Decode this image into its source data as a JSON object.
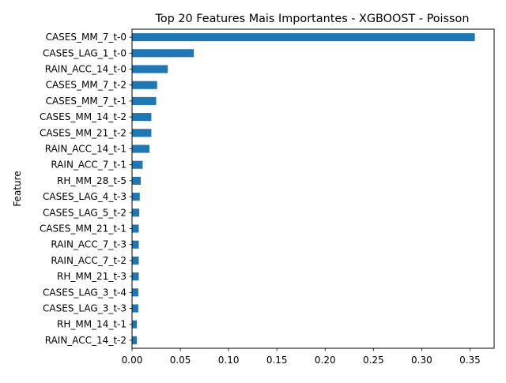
{
  "chart_data": {
    "type": "bar",
    "orientation": "horizontal",
    "title": "Top 20 Features Mais Importantes - XGBOOST - Poisson",
    "xlabel": "",
    "ylabel": "Feature",
    "xlim": [
      0,
      0.375
    ],
    "xticks": [
      "0.00",
      "0.05",
      "0.10",
      "0.15",
      "0.20",
      "0.25",
      "0.30",
      "0.35"
    ],
    "xtick_values": [
      0,
      0.05,
      0.1,
      0.15,
      0.2,
      0.25,
      0.3,
      0.35
    ],
    "grid": false,
    "bar_color": "#1f77b4",
    "categories": [
      "CASES_MM_7_t-0",
      "CASES_LAG_1_t-0",
      "RAIN_ACC_14_t-0",
      "CASES_MM_7_t-2",
      "CASES_MM_7_t-1",
      "CASES_MM_14_t-2",
      "CASES_MM_21_t-2",
      "RAIN_ACC_14_t-1",
      "RAIN_ACC_7_t-1",
      "RH_MM_28_t-5",
      "CASES_LAG_4_t-3",
      "CASES_LAG_5_t-2",
      "CASES_MM_21_t-1",
      "RAIN_ACC_7_t-3",
      "RAIN_ACC_7_t-2",
      "RH_MM_21_t-3",
      "CASES_LAG_3_t-4",
      "CASES_LAG_3_t-3",
      "RH_MM_14_t-1",
      "RAIN_ACC_14_t-2"
    ],
    "values": [
      0.355,
      0.064,
      0.037,
      0.026,
      0.025,
      0.02,
      0.02,
      0.018,
      0.011,
      0.009,
      0.008,
      0.0075,
      0.007,
      0.007,
      0.007,
      0.007,
      0.0065,
      0.0065,
      0.005,
      0.005
    ]
  }
}
